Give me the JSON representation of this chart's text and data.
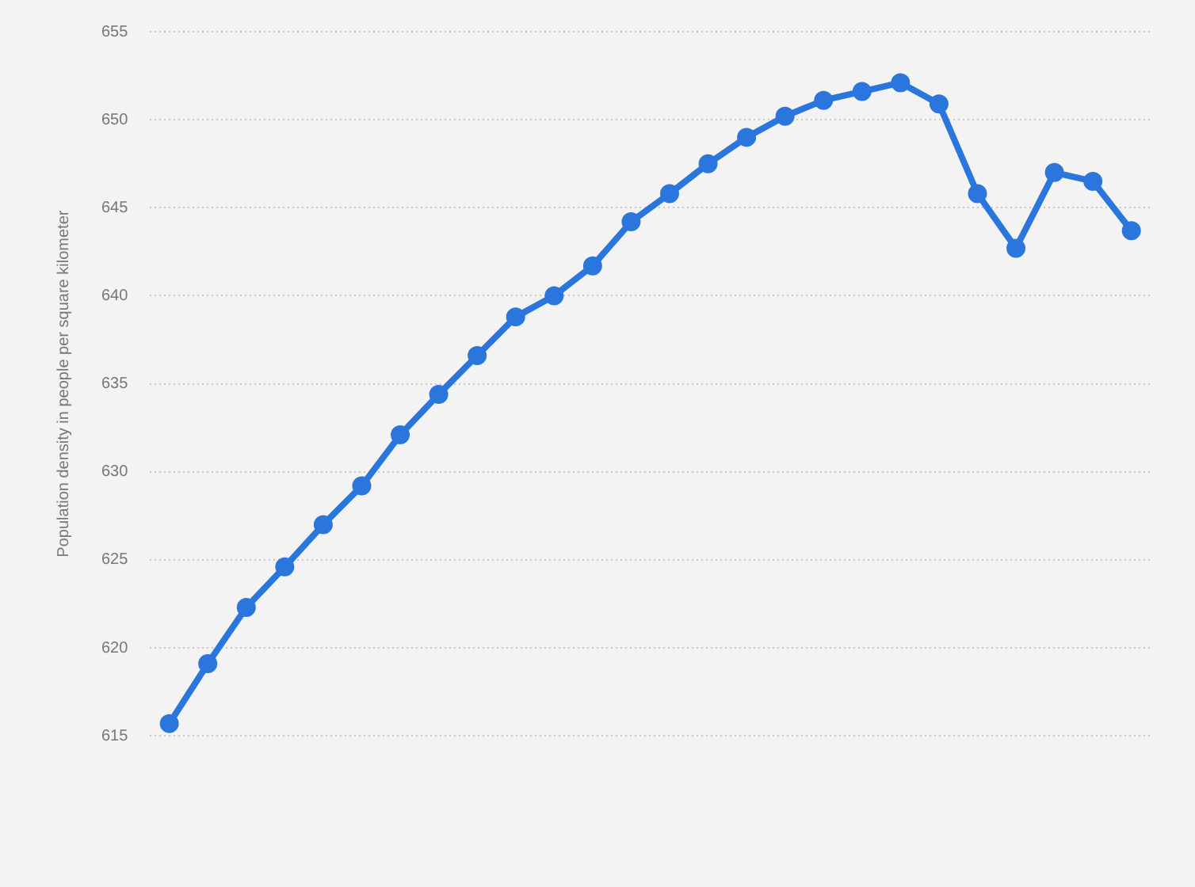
{
  "chart_data": {
    "type": "line",
    "ylabel": "Population density in people per square kilometer",
    "categories": [
      null,
      null,
      null,
      null,
      null,
      null,
      null,
      null,
      null,
      null,
      null,
      null,
      null,
      null,
      null,
      null,
      null,
      null,
      null,
      null,
      null,
      null,
      null,
      null,
      null,
      null
    ],
    "series": [
      {
        "color": "#2a76dd",
        "values": [
          615.7,
          619.1,
          622.3,
          624.6,
          627.0,
          629.2,
          632.1,
          634.4,
          636.6,
          638.8,
          640.0,
          641.7,
          644.2,
          645.8,
          647.5,
          649.0,
          650.2,
          651.1,
          651.6,
          652.1,
          650.9,
          645.8,
          642.7,
          647.0,
          646.5,
          643.7
        ]
      }
    ],
    "ylim": [
      615,
      655
    ],
    "yticks": [
      615,
      620,
      625,
      630,
      635,
      640,
      645,
      650,
      655
    ],
    "grid": "y",
    "marker": "circle",
    "line_style": "solid",
    "legend": false
  }
}
